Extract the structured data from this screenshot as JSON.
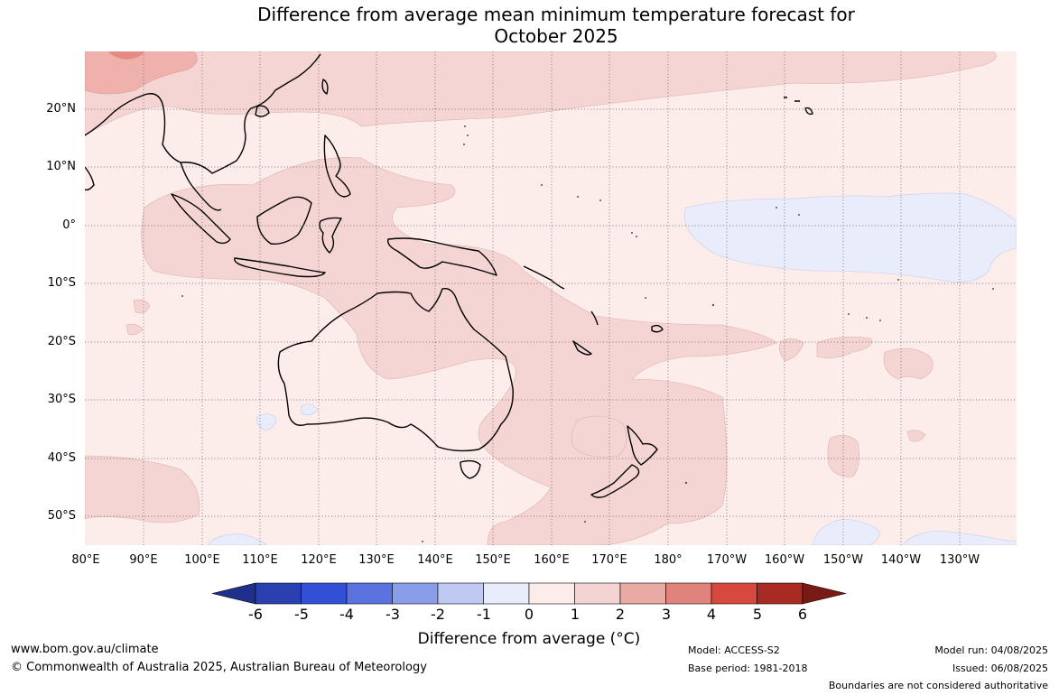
{
  "title_line1": "Difference from average mean minimum temperature forecast for",
  "title_line2": "October 2025",
  "lat_labels": [
    "20°N",
    "10°N",
    "0°",
    "10°S",
    "20°S",
    "30°S",
    "40°S",
    "50°S"
  ],
  "lon_labels": [
    "80°E",
    "90°E",
    "100°E",
    "110°E",
    "120°E",
    "130°E",
    "140°E",
    "150°E",
    "160°E",
    "170°E",
    "180°",
    "170°W",
    "160°W",
    "150°W",
    "140°W",
    "130°W"
  ],
  "colorbar": {
    "labels": [
      "-6",
      "-5",
      "-4",
      "-3",
      "-2",
      "-1",
      "0",
      "1",
      "2",
      "3",
      "4",
      "5",
      "6"
    ],
    "colors": [
      "#1f2f8c",
      "#2a3fb0",
      "#3350d8",
      "#5b73e0",
      "#8a9ee8",
      "#c0c9f2",
      "#e8ecfb",
      "#fcecea",
      "#f4d4d2",
      "#e9aaa5",
      "#e0837c",
      "#d7483e",
      "#a82a22",
      "#7a1a14"
    ],
    "title": "Difference from average (°C)"
  },
  "footer": {
    "website": "www.bom.gov.au/climate",
    "copyright": "© Commonwealth of Australia 2025, Australian Bureau of Meteorology",
    "model": "Model: ACCESS-S2",
    "base_period": "Base period: 1981-2018",
    "model_run": "Model run: 04/08/2025",
    "issued": "Issued: 06/08/2025",
    "boundaries_note": "Boundaries are not considered authoritative"
  }
}
